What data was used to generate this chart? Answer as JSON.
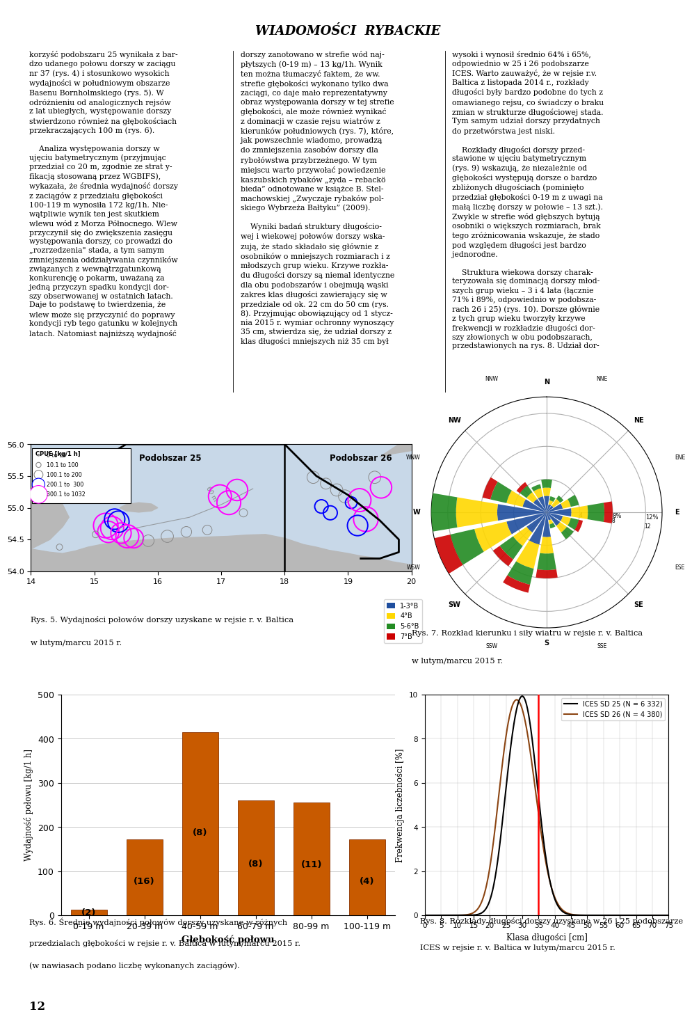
{
  "header_text": "WIADOMOSCI RYBACKIE",
  "col1_para1": "korzysc podobszaru 25 wynikala z bar- dzo udanego polowu dorszy w zaciagu nr 37 (rys. 4) i stosunkowo wysokich wydajnosci w poludniowym obszarze Basenu Bornholmskiego (rys. 5). W odroznieniu od analogicznych rejsow z lat ubieglych, wystepowanie dorszy stwierdzono rowniez na glebokosciach przekraczajacych 100 m (rys. 6).",
  "col1_para2": "Analiza wystepowania dorszy w ujeciu batymetrycznym (przyjmujac przedzial co 20 m, zgodnie ze strat y- fikacja stosowana przez WGBIFS), wykazala, ze srednia wydajnosc dorszy z zaciagow z przedzialu glebokosci 100-119 m wynosila 172 kg/1h. Nie- watpliwie wynik ten jest skutkiem wlewu wod z Morza Polnocnego. Wlew przyczynил sie do zwiekszenia zasiegu wystepowania dorszy, co prowadzi do rozrzedzenia stada, a tym samym zmniejszenia oddzialywania czynnikow zwiazanych z wewnatrzgatunkowa konkurencje o pokarm, uwazana za jedna przyczyn spadku kondycji dor- szy obserwowanej w ostatnich latach. Daje to podstawe to twierdzenia, ze wlew moze sie przyczynic do poprawy kondycji ryb tego gatunku w kolejnych latach. Natomiast najnizsza wydajnosc",
  "col2_para1": "dorszy zanotowano w strefie wod naj- plytszych (0-19 m) - 13 kg/1h. Wynik ten mozna tlumaczyc faktem, ze ww. strefie glebokosci wykonano tylko dwa zaciagi, co daje malo reprezentatywny obraz wystepowania dorszy w tej strefie glebokosci, ale moze rowniez wynikac z dominacji w czasie rejsu wiatrow z kierunkow poludniowych (rys. 7), ktore, jak powszechnie wiadomo, prowadza do zmniejszenia zasobow dorszy dla rybolowstwa przybrzeżnego. W tym miejscu warto przywoac powiedzenie kaszubskich rybackow zyda rebacko bieda odnotowane w ksiazce B. Stel- machowskiej Zwyczaje rybackow pol- skiego Wybrzeza Baltyku (2009).",
  "col2_para2": "Wyniki badan struktury dlugoscio- wej i wiekowej polowow dorszy wska- zuja, ze stado skladalo sie glownie z osobnikow o mniejszych rozmiarach i z mlodszych grup wieku. Krzywe rozk- ladu dlugosci dorszy sa niemal identyczne dla obu podobszarow i obejmuja waski zakres klas dlugosci zawierajacy sie w przedziale od ok. 22 cm do 50 cm (rys. 8). Przyjmujac obowiazujacy od 1 stycz- nia 2015 r. wymiar ochronny wynoszacy 35 cm, stwierdza sie, ze udzial dorszy z klas dlugosci mniejszych niz 35 cm byl",
  "col3_para1": "wysoki i wynosil srednio 64% i 65%, odpowiednio w 25 i 26 podobszarze ICES. Warto zauwazyc, ze w rejsie r.v. Baltica z listopada 2014 r., rozklady dlugosci byly bardzo podobne do tych z omawianego rejsu, co swiadczy o braku zmian w strukturze dlugosciowej stada. Tym samym udzial dorszy przydatnych do przetwOrstwa jest niski.",
  "col3_para2": "Rozklady dlugosci dorszy przed- stawione w ujeciu batymetrycznym (rys. 9) wskazuja, ze niezaleznie od glebokosci wystepuja dorsze o bardzo zblizonych dlugosciach (pominieto przedzial glebokosci 0-19 m z uwagi na mala liczbe dorszy w polowie - 13 szt.). Zwykle w strefie wod glebszych bytuja osobniki o wiekszych rozmiarach, brak tego zroznicowania wskazuje, ze stado pod wzgledem dlugosci jest bardzo jednorodne.",
  "col3_para3": "Struktura wiekowa dorszy charak- teryzowala sie dominacja dorszy mlod- szych grup wieku - 3 i 4 lata (lacznie 71% i 89%, odpowiednio w podobsza- rach 26 i 25) (rys. 10). Dorsze glownie z tych grup wieku tworzyly krzywe frekwencji w rozkladzie dlugosci dor- szy zlowionych w obu podobszarach, przedstawionych na rys. 8. Udzial dor-",
  "bar_categories": [
    "0-19 m",
    "20-39 m",
    "40-59 m",
    "60-79 m",
    "80-99 m",
    "100-119 m"
  ],
  "bar_values": [
    13,
    172,
    415,
    260,
    255,
    172
  ],
  "bar_counts": [
    "(2)",
    "(16)",
    "(8)",
    "(8)",
    "(11)",
    "(4)"
  ],
  "bar_color": "#C85A00",
  "bar_ylabel": "Wydajnosc polowu [kg/1 h]",
  "bar_xlabel": "Glebokosć polowu",
  "bar_ylim": [
    0,
    500
  ],
  "bar_yticks": [
    0,
    100,
    200,
    300,
    400,
    500
  ],
  "rys5_caption_l1": "Rys. 5. Wydajności połowów dorszy uzyskane w rejsie r. v. Baltica",
  "rys5_caption_l2": "w lutym/marcu 2015 r.",
  "rys6_caption_l1": "Rys. 6. Średnie wydajności połowów dorszy uzyskane w różnych",
  "rys6_caption_l2": "przedzialach głębokości w rejsie r. v. Baltica w lutym/marcu 2015 r.",
  "rys6_caption_l3": "(w nawiasach podano liczbę wykonanych zaciągów).",
  "rys7_caption_l1": "Rys. 7. Rozkład kierunku i siły wiatru w rejsie r. v. Baltica",
  "rys7_caption_l2": "w lutym/marcu 2015 r.",
  "rys8_caption_l1": "Rys. 8. Rozkłady długości dorszy uzyskane w 26 i 25 podobszarze",
  "rys8_caption_l2": "ICES w rejsie r. v. Baltica w lutym/marcu 2015 r.",
  "line_xlabel": "Klasa długości [cm]",
  "line_ylabel": "Frekwencja liczebności [%]",
  "line_xlim": [
    0,
    75
  ],
  "line_ylim": [
    0,
    10
  ],
  "line_xticks": [
    0,
    5,
    10,
    15,
    20,
    25,
    30,
    35,
    40,
    45,
    50,
    55,
    60,
    65,
    70,
    75
  ],
  "line_yticks": [
    0,
    2,
    4,
    6,
    8,
    10
  ],
  "line1_label": "ICES SD 25 (N = 6 332)",
  "line1_color": "#000000",
  "line2_label": "ICES SD 26 (N = 4 380)",
  "line2_color": "#8B4513",
  "page_number": "12",
  "background_color": "#ffffff",
  "wind_dirs": [
    "N",
    "NNE",
    "NE",
    "ENE",
    "E",
    "ESE",
    "SE",
    "SSE",
    "S",
    "SSW",
    "SW",
    "WSW",
    "W",
    "WNW",
    "NW",
    "NNW"
  ],
  "wind_freqs_b1": [
    2.0,
    1.0,
    1.0,
    2.0,
    3.0,
    2.0,
    2.0,
    1.0,
    3.0,
    4.0,
    3.0,
    5.0,
    6.0,
    3.0,
    2.0,
    2.0
  ],
  "wind_freqs_b2": [
    1.0,
    0.5,
    1.0,
    1.0,
    2.0,
    1.0,
    1.0,
    0.5,
    2.0,
    3.0,
    2.0,
    4.0,
    5.0,
    2.0,
    1.0,
    1.0
  ],
  "wind_freqs_b3": [
    1.0,
    0.5,
    0.5,
    1.0,
    2.0,
    1.0,
    1.0,
    0.5,
    2.0,
    2.0,
    2.0,
    3.0,
    4.0,
    2.0,
    1.0,
    0.5
  ],
  "wind_freqs_b4": [
    0.0,
    0.0,
    0.0,
    0.0,
    1.0,
    0.5,
    0.0,
    0.0,
    1.0,
    1.0,
    1.0,
    2.0,
    2.0,
    1.0,
    0.5,
    0.0
  ],
  "wind_colors": [
    "#1F4E9E",
    "#FFD700",
    "#228B22",
    "#CC0000"
  ],
  "wind_labels": [
    "1-3°B",
    "4°B",
    "5-6°B",
    "7°B"
  ]
}
